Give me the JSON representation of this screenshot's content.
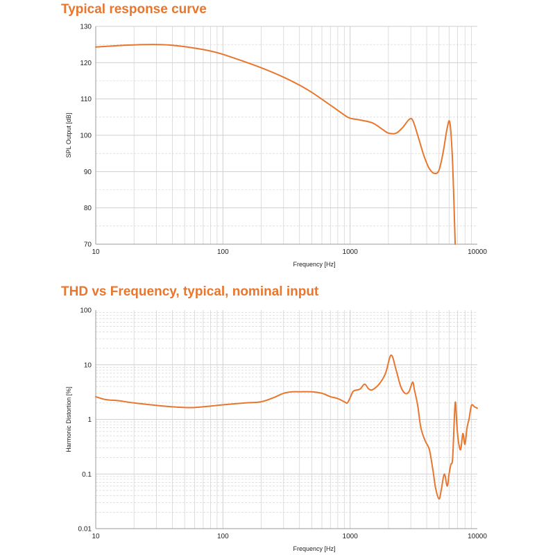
{
  "colors": {
    "accent": "#e8762c",
    "grid": "#cfcfcf",
    "axis": "#999999"
  },
  "chart_data": [
    {
      "type": "line",
      "title": "Typical response curve",
      "xlabel": "Frequency [Hz]",
      "ylabel": "SPL Output [dB]",
      "xscale": "log",
      "xlim": [
        10,
        10000
      ],
      "ylim": [
        70,
        130
      ],
      "xticks": [
        "10",
        "100",
        "1000",
        "10000"
      ],
      "yticks": [
        "70",
        "80",
        "90",
        "100",
        "110",
        "120",
        "130"
      ],
      "grid": true,
      "series": [
        {
          "x": [
            10,
            15,
            20,
            30,
            40,
            60,
            80,
            100,
            150,
            200,
            300,
            400,
            500,
            700,
            900,
            1000,
            1200,
            1500,
            1800,
            2000,
            2300,
            2600,
            2900,
            3100,
            3400,
            3800,
            4200,
            4600,
            5000,
            5400,
            5800,
            6100,
            6400,
            6700
          ],
          "y": [
            124.3,
            124.7,
            124.9,
            125.0,
            124.8,
            124.0,
            123.2,
            122.3,
            120.2,
            118.6,
            116.0,
            113.8,
            111.8,
            108.3,
            105.6,
            104.7,
            104.2,
            103.4,
            101.6,
            100.6,
            100.6,
            102.2,
            104.3,
            104.2,
            100.0,
            94.4,
            90.8,
            89.5,
            90.4,
            95.5,
            102.0,
            103.3,
            92.0,
            70.0
          ]
        }
      ]
    },
    {
      "type": "line",
      "title": "THD vs Frequency, typical, nominal input",
      "xlabel": "Frequency [Hz]",
      "ylabel": "Harmonic Distortion [%]",
      "xscale": "log",
      "yscale": "log",
      "xlim": [
        10,
        10000
      ],
      "ylim": [
        0.01,
        100
      ],
      "xticks": [
        "10",
        "100",
        "1000",
        "10000"
      ],
      "yticks": [
        "0.01",
        "0.1",
        "1",
        "10",
        "100"
      ],
      "grid": true,
      "series": [
        {
          "x": [
            10,
            12,
            15,
            20,
            30,
            40,
            50,
            60,
            80,
            100,
            150,
            200,
            250,
            300,
            350,
            400,
            500,
            600,
            700,
            800,
            900,
            950,
            1000,
            1050,
            1100,
            1200,
            1300,
            1400,
            1500,
            1700,
            1900,
            2100,
            2300,
            2500,
            2700,
            2900,
            3100,
            3200,
            3400,
            3600,
            3900,
            4200,
            4500,
            4700,
            5000,
            5200,
            5500,
            5800,
            6000,
            6200,
            6400,
            6700,
            6900,
            7100,
            7400,
            7700,
            8000,
            8300,
            8600,
            9000,
            9500,
            10000
          ],
          "y": [
            2.6,
            2.3,
            2.2,
            2.0,
            1.8,
            1.7,
            1.65,
            1.65,
            1.75,
            1.85,
            2.0,
            2.1,
            2.5,
            3.0,
            3.2,
            3.2,
            3.2,
            3.0,
            2.6,
            2.4,
            2.1,
            2.0,
            2.5,
            3.2,
            3.4,
            3.6,
            4.4,
            3.6,
            3.5,
            4.5,
            7.0,
            15.0,
            8.0,
            4.0,
            3.0,
            3.2,
            4.8,
            3.5,
            1.8,
            0.7,
            0.4,
            0.28,
            0.11,
            0.055,
            0.035,
            0.05,
            0.1,
            0.06,
            0.1,
            0.15,
            0.2,
            2.0,
            0.8,
            0.4,
            0.28,
            0.55,
            0.35,
            0.7,
            1.0,
            1.8,
            1.7,
            1.6
          ]
        }
      ]
    }
  ]
}
